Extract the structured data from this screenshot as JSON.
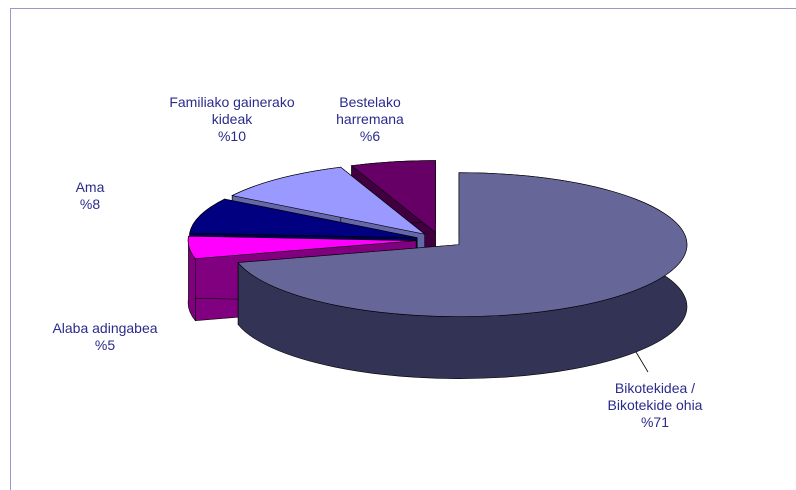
{
  "chart_data": {
    "type": "pie3d",
    "categories": [
      "Bikotekidea / Bikotekide ohia",
      "Alaba adingabea",
      "Ama",
      "Familiako gainerako kideak",
      "Bestelako harremana"
    ],
    "values": [
      71,
      5,
      8,
      10,
      6
    ],
    "value_labels": [
      "%71",
      "%5",
      "%8",
      "%10",
      "%6"
    ],
    "colors": [
      "#666699",
      "#ff00ff",
      "#000080",
      "#9999ff",
      "#660066"
    ],
    "side_colors": [
      "#333355",
      "#800080",
      "#000050",
      "#6666aa",
      "#400040"
    ]
  }
}
